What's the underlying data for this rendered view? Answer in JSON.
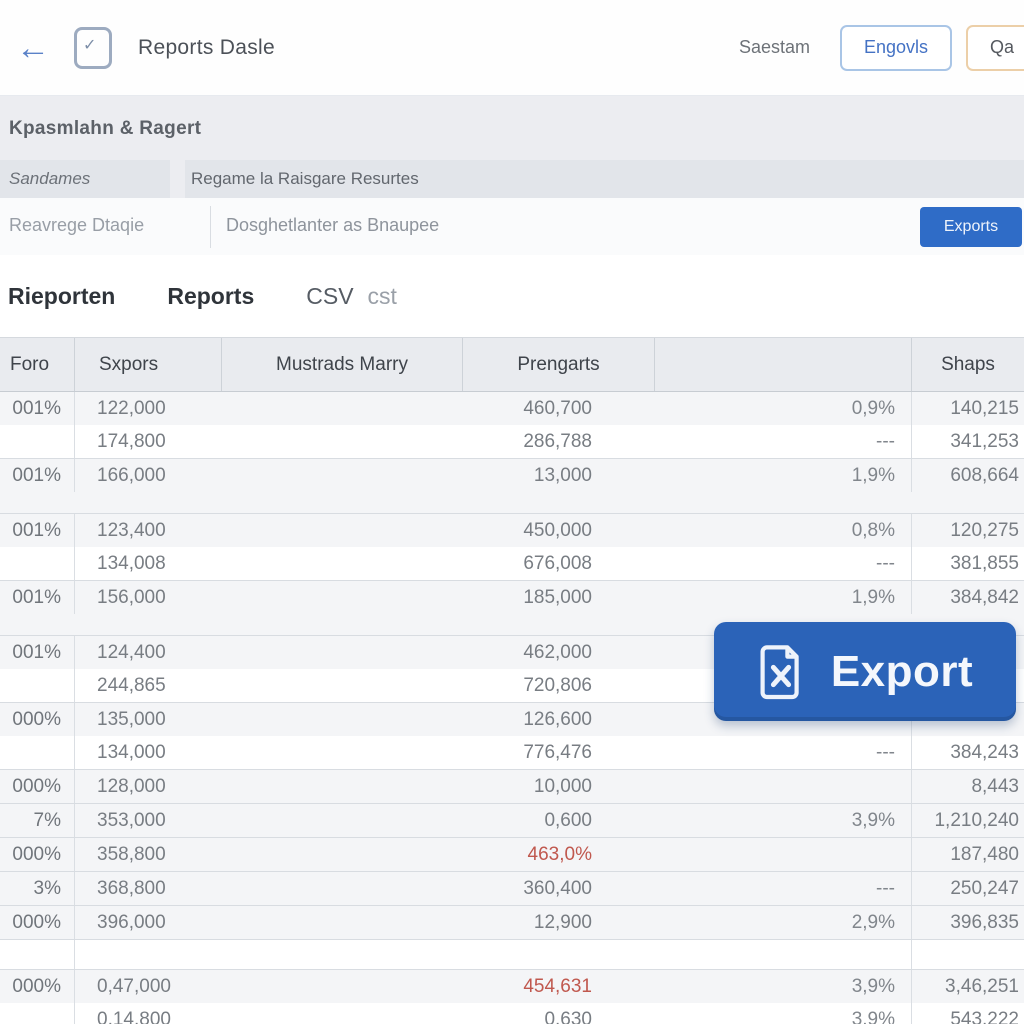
{
  "topbar": {
    "title": "Reports Dasle",
    "right_text": "Saestam",
    "outline_button_label": "Engovls",
    "orange_button_label": "Qa",
    "icons": [
      "back-arrow-icon",
      "task-checkbox-icon"
    ]
  },
  "filter_panel": {
    "title": "Kpasmlahn & Ragert",
    "label_left": "Sandames",
    "label_right": "Regame la Raisgare Resurtes",
    "value_left": "Reavrege Dtaqie",
    "value_right": "Dosghetlanter as Bnaupee",
    "exports_button_label": "Exports"
  },
  "tabs": [
    {
      "label": "Rieporten",
      "style": "strong"
    },
    {
      "label": "Reports",
      "style": "strong"
    },
    {
      "label": "CSV",
      "style": "muted"
    },
    {
      "label": "cst",
      "style": "faint"
    }
  ],
  "table": {
    "headers": [
      "Foro",
      "Sxpors",
      "Mustrads Marry",
      "Prengarts",
      "",
      "Shaps"
    ],
    "groups": [
      {
        "lines": [
          {
            "pct": "001%",
            "sxpors": "122,000",
            "prengarts": "460,700",
            "rate": "0,9%",
            "shaps": "140,215",
            "red": false
          },
          {
            "pct": "",
            "sxpors": "174,800",
            "prengarts": "286,788",
            "rate": "---",
            "shaps": "341,253",
            "red": false
          }
        ]
      },
      {
        "tall": true,
        "lines": [
          {
            "pct": "001%",
            "sxpors": "166,000",
            "prengarts": "13,000",
            "rate": "1,9%",
            "shaps": "608,664",
            "red": false
          }
        ]
      },
      {
        "lines": [
          {
            "pct": "001%",
            "sxpors": "123,400",
            "prengarts": "450,000",
            "rate": "0,8%",
            "shaps": "120,275",
            "red": false
          },
          {
            "pct": "",
            "sxpors": "134,008",
            "prengarts": "676,008",
            "rate": "---",
            "shaps": "381,855",
            "red": false
          }
        ]
      },
      {
        "tall": true,
        "lines": [
          {
            "pct": "001%",
            "sxpors": "156,000",
            "prengarts": "185,000",
            "rate": "1,9%",
            "shaps": "384,842",
            "red": false
          }
        ]
      },
      {
        "lines": [
          {
            "pct": "001%",
            "sxpors": "124,400",
            "prengarts": "462,000",
            "rate": "",
            "shaps": "",
            "red": false
          },
          {
            "pct": "",
            "sxpors": "244,865",
            "prengarts": "720,806",
            "rate": "",
            "shaps": "",
            "red": false
          }
        ]
      },
      {
        "lines": [
          {
            "pct": "000%",
            "sxpors": "135,000",
            "prengarts": "126,600",
            "rate": "",
            "shaps": "",
            "red": false
          },
          {
            "pct": "",
            "sxpors": "134,000",
            "prengarts": "776,476",
            "rate": "---",
            "shaps": "384,243",
            "red": false
          }
        ]
      },
      {
        "lines": [
          {
            "pct": "000%",
            "sxpors": "128,000",
            "prengarts": "10,000",
            "rate": "",
            "shaps": "8,443",
            "red": false
          }
        ]
      },
      {
        "lines": [
          {
            "pct": "7%",
            "sxpors": "353,000",
            "prengarts": "0,600",
            "rate": "3,9%",
            "shaps": "1,210,240",
            "red": false
          }
        ]
      },
      {
        "lines": [
          {
            "pct": "000%",
            "sxpors": "358,800",
            "prengarts": "463,0%",
            "rate": "",
            "shaps": "187,480",
            "red": true
          }
        ]
      },
      {
        "lines": [
          {
            "pct": "3%",
            "sxpors": "368,800",
            "prengarts": "360,400",
            "rate": "---",
            "shaps": "250,247",
            "red": false
          }
        ]
      },
      {
        "lines": [
          {
            "pct": "000%",
            "sxpors": "396,000",
            "prengarts": "12,900",
            "rate": "2,9%",
            "shaps": "396,835",
            "red": false
          }
        ]
      },
      {
        "spacer": true,
        "lines": []
      },
      {
        "lines": [
          {
            "pct": "000%",
            "sxpors": "0,47,000",
            "prengarts": "454,631",
            "rate": "3,9%",
            "shaps": "3,46,251",
            "red": true
          },
          {
            "pct": "",
            "sxpors": "0,14,800",
            "prengarts": "0,630",
            "rate": "3,9%",
            "shaps": "543,222",
            "red": false
          }
        ]
      }
    ]
  },
  "export_overlay": {
    "label": "Export",
    "icon": "export-file-x-icon"
  },
  "colors": {
    "accent_blue": "#2f6cc7",
    "overlay_blue": "#2b63b8",
    "negative_red": "#c0584e",
    "orange_border": "#eccfa8",
    "header_bg": "#e9ebef",
    "panel_bg": "#ecedf1"
  }
}
